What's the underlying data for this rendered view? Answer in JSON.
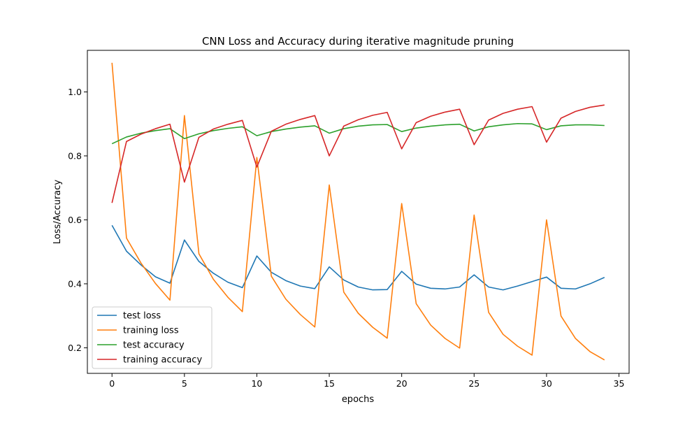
{
  "chart_data": {
    "type": "line",
    "title": "CNN Loss and Accuracy during iterative magnitude pruning",
    "xlabel": "epochs",
    "ylabel": "Loss/Accuracy",
    "xlim": [
      -1.7,
      35.7
    ],
    "ylim": [
      0.12,
      1.13
    ],
    "xticks": [
      0,
      5,
      10,
      15,
      20,
      25,
      30,
      35
    ],
    "xtick_labels": [
      "0",
      "5",
      "10",
      "15",
      "20",
      "25",
      "30",
      "35"
    ],
    "yticks": [
      0.2,
      0.4,
      0.6,
      0.8,
      1.0
    ],
    "ytick_labels": [
      "0.2",
      "0.4",
      "0.6",
      "0.8",
      "1.0"
    ],
    "grid": false,
    "legend_position": "lower-left",
    "x": [
      0,
      1,
      2,
      3,
      4,
      5,
      6,
      7,
      8,
      9,
      10,
      11,
      12,
      13,
      14,
      15,
      16,
      17,
      18,
      19,
      20,
      21,
      22,
      23,
      24,
      25,
      26,
      27,
      28,
      29,
      30,
      31,
      32,
      33,
      34
    ],
    "series": [
      {
        "name": "test loss",
        "color": "#1f77b4",
        "values": [
          0.583,
          0.502,
          0.459,
          0.422,
          0.402,
          0.537,
          0.47,
          0.433,
          0.405,
          0.388,
          0.487,
          0.436,
          0.41,
          0.393,
          0.385,
          0.453,
          0.412,
          0.39,
          0.381,
          0.382,
          0.439,
          0.399,
          0.386,
          0.384,
          0.39,
          0.428,
          0.39,
          0.381,
          0.393,
          0.407,
          0.421,
          0.386,
          0.384,
          0.4,
          0.42
        ]
      },
      {
        "name": "training loss",
        "color": "#ff7f0e",
        "values": [
          1.091,
          0.543,
          0.465,
          0.401,
          0.349,
          0.926,
          0.494,
          0.414,
          0.358,
          0.313,
          0.795,
          0.424,
          0.352,
          0.304,
          0.265,
          0.709,
          0.374,
          0.308,
          0.264,
          0.23,
          0.651,
          0.338,
          0.271,
          0.229,
          0.199,
          0.615,
          0.311,
          0.242,
          0.205,
          0.177,
          0.6,
          0.299,
          0.229,
          0.188,
          0.162
        ]
      },
      {
        "name": "test accuracy",
        "color": "#2ca02c",
        "values": [
          0.838,
          0.859,
          0.871,
          0.879,
          0.885,
          0.854,
          0.869,
          0.879,
          0.886,
          0.891,
          0.863,
          0.876,
          0.884,
          0.89,
          0.894,
          0.871,
          0.885,
          0.893,
          0.897,
          0.898,
          0.876,
          0.887,
          0.893,
          0.897,
          0.899,
          0.878,
          0.891,
          0.897,
          0.901,
          0.9,
          0.882,
          0.894,
          0.897,
          0.897,
          0.895
        ]
      },
      {
        "name": "training accuracy",
        "color": "#d62728",
        "values": [
          0.653,
          0.845,
          0.868,
          0.885,
          0.899,
          0.718,
          0.858,
          0.884,
          0.899,
          0.911,
          0.765,
          0.877,
          0.899,
          0.914,
          0.926,
          0.8,
          0.893,
          0.913,
          0.927,
          0.936,
          0.822,
          0.904,
          0.924,
          0.937,
          0.946,
          0.835,
          0.912,
          0.933,
          0.946,
          0.954,
          0.843,
          0.918,
          0.939,
          0.952,
          0.959
        ]
      }
    ]
  }
}
